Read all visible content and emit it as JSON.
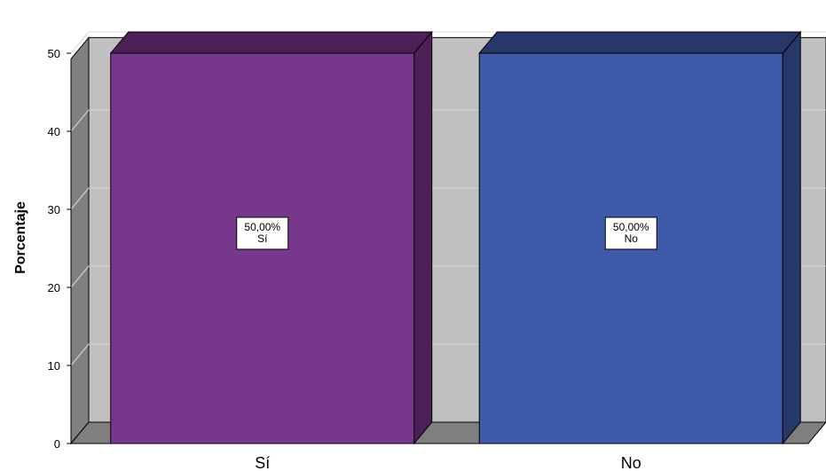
{
  "chart_data": {
    "type": "bar",
    "categories": [
      "Sí",
      "No"
    ],
    "values": [
      50,
      50
    ],
    "data_labels": [
      {
        "value": "50,00%",
        "category": "Sí"
      },
      {
        "value": "50,00%",
        "category": "No"
      }
    ],
    "title": "",
    "xlabel": "",
    "ylabel": "Porcentaje",
    "ylim": [
      0,
      52
    ],
    "yticks": [
      "0",
      "10",
      "20",
      "30",
      "40",
      "50"
    ],
    "ytick_values": [
      0,
      10,
      20,
      30,
      40,
      50
    ],
    "grid": true,
    "legend": "none",
    "style": "3d",
    "colors": {
      "bar_front": [
        "#77378b",
        "#3e5aa8"
      ],
      "bar_side": [
        "#4c1f58",
        "#273769"
      ],
      "bar_top": [
        "#4c1f58",
        "#273769"
      ],
      "plot_background": "#c0c0c0",
      "floor": "#7f7f7f",
      "side_wall": "#808080",
      "gridline": "#d9d9d9"
    }
  }
}
